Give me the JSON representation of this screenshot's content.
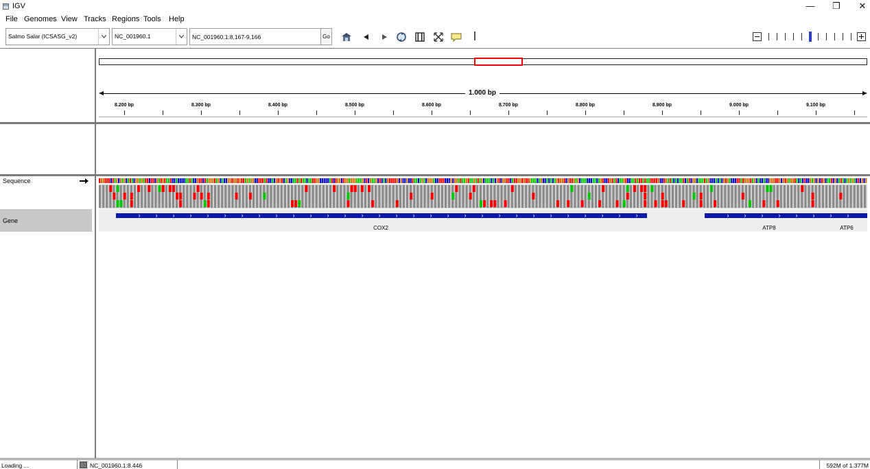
{
  "window": {
    "title": "IGV",
    "controls": {
      "minimize": "—",
      "restore": "❐",
      "close": "✕"
    }
  },
  "menu": [
    "File",
    "Genomes",
    "View",
    "Tracks",
    "Regions",
    "Tools",
    "Help"
  ],
  "toolbar": {
    "genome": "Salmo Salar (ICSASG_v2)",
    "chromosome": "NC_001960.1",
    "locus": "NC_001960.1:8,167-9,166",
    "go_label": "Go",
    "icons": [
      "home-icon",
      "back-icon",
      "forward-icon",
      "refresh-icon",
      "roi-icon",
      "resize-icon",
      "popup-info-icon"
    ]
  },
  "zoom": {
    "levels": 11,
    "current_level": 5
  },
  "ruler": {
    "span": "1.000 bp",
    "ticks": [
      "8.200 bp",
      "8.300 bp",
      "8.400 bp",
      "8.500 bp",
      "8.600 bp",
      "8.700 bp",
      "8.800 bp",
      "8.900 bp",
      "9.000 bp",
      "9.100 bp"
    ],
    "view_start": 8167,
    "view_end": 9166
  },
  "tracks": {
    "sequence": {
      "name": "Sequence",
      "strand_arrow": "forward"
    },
    "gene": {
      "name": "Gene",
      "features": [
        {
          "name": "COX2",
          "start": 8189,
          "end": 8880,
          "strand": "+"
        },
        {
          "name": "ATP8",
          "start": 8955,
          "end": 9170,
          "strand": "+"
        },
        {
          "name": "ATP6",
          "start": 9110,
          "end": 9170,
          "strand": "+"
        }
      ]
    }
  },
  "status": {
    "message": "Loading ...",
    "position": "NC_001960.1:8.446",
    "memory": "592M of 1.377M"
  },
  "colors": {
    "gene": "#0b18a8",
    "region_box": "#e00000",
    "base_A": "#00c800",
    "base_C": "#0000c8",
    "base_G": "#d17105",
    "base_T": "#ff0000",
    "read_gray": "#8a8a8a"
  }
}
